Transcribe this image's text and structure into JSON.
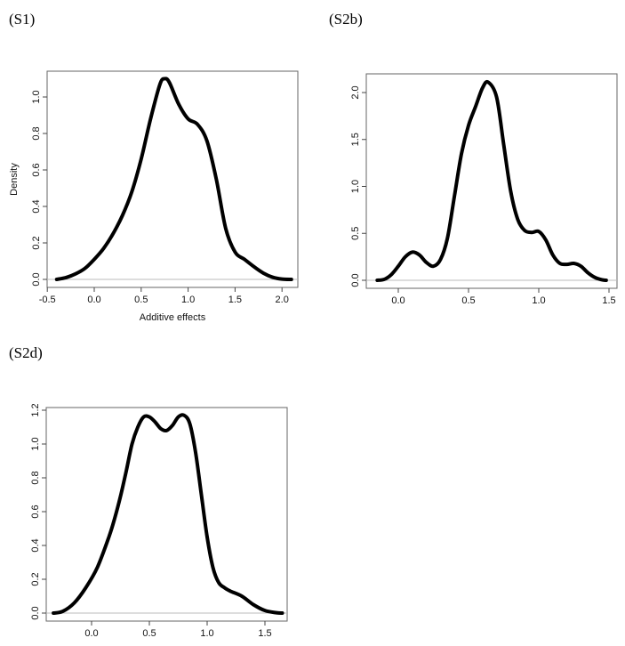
{
  "chart_data": [
    {
      "type": "line",
      "panel_label": "(S1)",
      "xlabel": "Additive effects",
      "ylabel": "Density",
      "xlim": [
        -0.5,
        2.1
      ],
      "ylim": [
        0,
        1.1
      ],
      "x_ticks": [
        "-0.5",
        "0.0",
        "0.5",
        "1.0",
        "1.5",
        "2.0"
      ],
      "y_ticks": [
        "0.0",
        "0.2",
        "0.4",
        "0.6",
        "0.8",
        "1.0"
      ],
      "grid": false,
      "baseline_color": "#bbbbbb",
      "line_color": "#000000",
      "x": [
        -0.4,
        -0.3,
        -0.2,
        -0.1,
        0,
        0.1,
        0.2,
        0.3,
        0.4,
        0.5,
        0.6,
        0.7,
        0.75,
        0.8,
        0.9,
        1.0,
        1.1,
        1.2,
        1.3,
        1.4,
        1.5,
        1.6,
        1.7,
        1.8,
        1.9,
        2.0,
        2.1
      ],
      "y": [
        0,
        0.01,
        0.03,
        0.06,
        0.11,
        0.17,
        0.25,
        0.35,
        0.48,
        0.66,
        0.88,
        1.07,
        1.1,
        1.08,
        0.96,
        0.88,
        0.85,
        0.76,
        0.55,
        0.28,
        0.15,
        0.11,
        0.07,
        0.035,
        0.012,
        0.002,
        0
      ]
    },
    {
      "type": "line",
      "panel_label": "(S2b)",
      "xlabel": "",
      "ylabel": "",
      "xlim": [
        -0.15,
        1.5
      ],
      "ylim": [
        0,
        2.11
      ],
      "x_ticks": [
        "0.0",
        "0.5",
        "1.0",
        "1.5"
      ],
      "y_ticks": [
        "0.0",
        "0.5",
        "1.0",
        "1.5",
        "2.0"
      ],
      "grid": false,
      "baseline_color": "#bbbbbb",
      "line_color": "#000000",
      "x": [
        -0.15,
        -0.1,
        -0.05,
        0,
        0.05,
        0.1,
        0.15,
        0.2,
        0.25,
        0.3,
        0.35,
        0.4,
        0.45,
        0.5,
        0.55,
        0.6,
        0.64,
        0.7,
        0.75,
        0.8,
        0.85,
        0.9,
        0.95,
        1.0,
        1.05,
        1.1,
        1.15,
        1.2,
        1.25,
        1.3,
        1.35,
        1.4,
        1.45,
        1.48
      ],
      "y": [
        0,
        0.01,
        0.06,
        0.15,
        0.25,
        0.3,
        0.27,
        0.19,
        0.15,
        0.22,
        0.45,
        0.9,
        1.35,
        1.65,
        1.85,
        2.05,
        2.11,
        1.95,
        1.45,
        0.95,
        0.65,
        0.53,
        0.51,
        0.52,
        0.43,
        0.27,
        0.18,
        0.17,
        0.18,
        0.15,
        0.08,
        0.03,
        0.005,
        0
      ]
    },
    {
      "type": "line",
      "panel_label": "(S2d)",
      "xlabel": "",
      "ylabel": "",
      "xlim": [
        -0.35,
        1.65
      ],
      "ylim": [
        0,
        1.2
      ],
      "x_ticks": [
        "0.0",
        "0.5",
        "1.0",
        "1.5"
      ],
      "y_ticks": [
        "0.0",
        "0.2",
        "0.4",
        "0.6",
        "0.8",
        "1.0",
        "1.2"
      ],
      "grid": false,
      "baseline_color": "#bbbbbb",
      "line_color": "#000000",
      "x": [
        -0.33,
        -0.25,
        -0.15,
        -0.05,
        0.05,
        0.15,
        0.2,
        0.25,
        0.3,
        0.35,
        0.4,
        0.45,
        0.5,
        0.55,
        0.6,
        0.65,
        0.7,
        0.75,
        0.8,
        0.85,
        0.9,
        0.95,
        1.0,
        1.05,
        1.1,
        1.15,
        1.2,
        1.3,
        1.4,
        1.5,
        1.6,
        1.65
      ],
      "y": [
        0,
        0.01,
        0.06,
        0.15,
        0.27,
        0.45,
        0.56,
        0.69,
        0.84,
        1.0,
        1.1,
        1.16,
        1.16,
        1.13,
        1.09,
        1.08,
        1.11,
        1.16,
        1.17,
        1.12,
        0.95,
        0.7,
        0.45,
        0.27,
        0.18,
        0.15,
        0.13,
        0.1,
        0.05,
        0.015,
        0.002,
        0
      ]
    }
  ]
}
